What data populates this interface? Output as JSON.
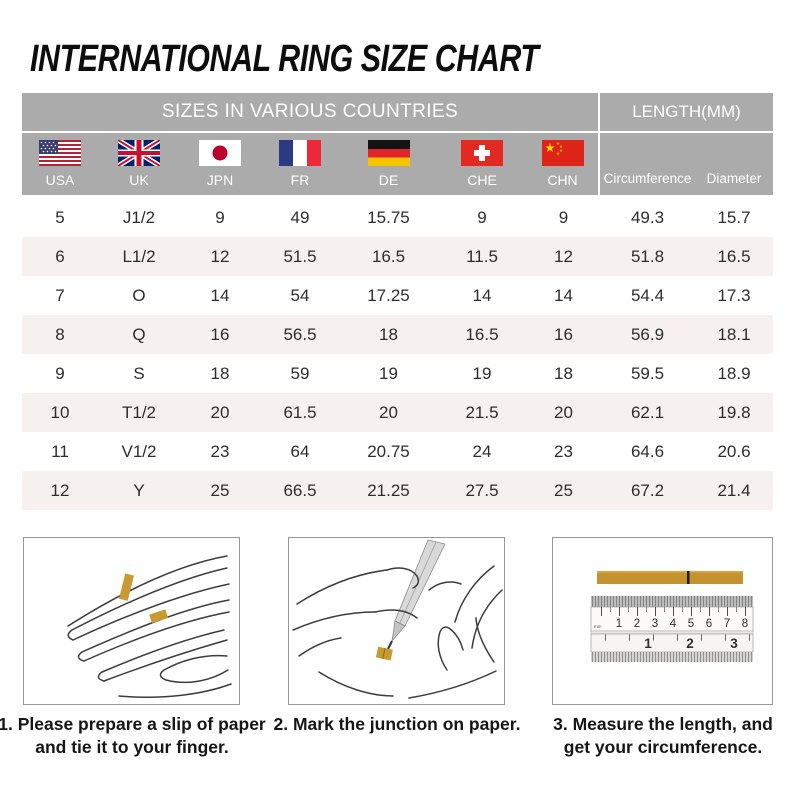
{
  "title": "INTERNATIONAL RING SIZE CHART",
  "colors": {
    "header_bg": "#ABABAB",
    "header_text": "#FFFFFF",
    "alt_row_bg": "#F6F1EE",
    "paper_strip_gold": "#C4922E",
    "title_text": "#0D0D0D"
  },
  "chart_data": {
    "type": "table",
    "title": "INTERNATIONAL RING SIZE CHART",
    "group_headers": {
      "sizes": "SIZES IN VARIOUS COUNTRIES",
      "length": "LENGTH(MM)"
    },
    "columns": [
      "USA",
      "UK",
      "JPN",
      "FR",
      "DE",
      "CHE",
      "CHN",
      "Circumference",
      "Diameter"
    ],
    "flag_icons": [
      "usa-flag",
      "uk-flag",
      "japan-flag",
      "france-flag",
      "germany-flag",
      "switzerland-flag",
      "china-flag"
    ],
    "rows": [
      [
        "5",
        "J1/2",
        "9",
        "49",
        "15.75",
        "9",
        "9",
        "49.3",
        "15.7"
      ],
      [
        "6",
        "L1/2",
        "12",
        "51.5",
        "16.5",
        "11.5",
        "12",
        "51.8",
        "16.5"
      ],
      [
        "7",
        "O",
        "14",
        "54",
        "17.25",
        "14",
        "14",
        "54.4",
        "17.3"
      ],
      [
        "8",
        "Q",
        "16",
        "56.5",
        "18",
        "16.5",
        "16",
        "56.9",
        "18.1"
      ],
      [
        "9",
        "S",
        "18",
        "59",
        "19",
        "19",
        "18",
        "59.5",
        "18.9"
      ],
      [
        "10",
        "T1/2",
        "20",
        "61.5",
        "20",
        "21.5",
        "20",
        "62.1",
        "19.8"
      ],
      [
        "11",
        "V1/2",
        "23",
        "64",
        "20.75",
        "24",
        "23",
        "64.6",
        "20.6"
      ],
      [
        "12",
        "Y",
        "25",
        "66.5",
        "21.25",
        "27.5",
        "25",
        "67.2",
        "21.4"
      ]
    ]
  },
  "steps": [
    {
      "illustration": "hand-with-paper-strip",
      "caption_lines": [
        "1. Please prepare a slip of paper",
        "and tie it to your finger."
      ]
    },
    {
      "illustration": "pen-marking-junction",
      "caption_lines": [
        "2. Mark the junction on paper."
      ]
    },
    {
      "illustration": "ruler-measurement",
      "caption_lines": [
        "3. Measure the length, and",
        "get your circumference."
      ],
      "ruler": {
        "cm_numbers": [
          "1",
          "2",
          "3",
          "4",
          "5",
          "6",
          "7",
          "8"
        ],
        "inch_numbers": [
          "1",
          "2",
          "3"
        ],
        "unit_label": "mm"
      }
    }
  ]
}
